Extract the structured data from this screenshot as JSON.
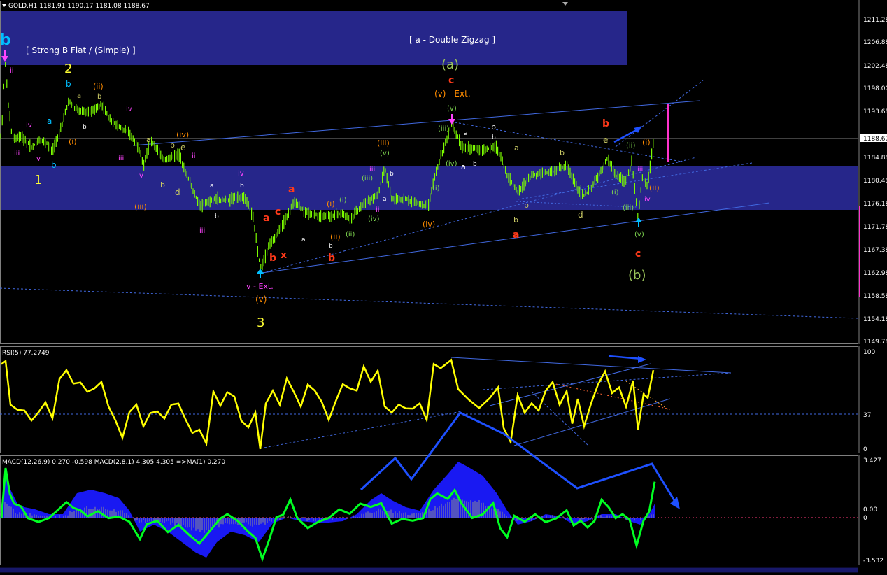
{
  "window": {
    "symbol_header": "GOLD,H1  1181.91 1190.17 1181.08 1188.67",
    "current_price_label": "1188.67"
  },
  "labels": {
    "box_left": "[ Strong B Flat / (Simple) ]",
    "box_right": "[ a - Double Zigzag ]",
    "v_ext": "v - Ext.",
    "vv_ext": "(v) - Ext."
  },
  "colors": {
    "background": "#000000",
    "band_fill": "#26268a",
    "candle": "#7cfc00",
    "grid_panel_border": "#7f7f7f",
    "trendline": "#4169e1",
    "rsi_line": "#ffff00",
    "macd_line": "#00ff00",
    "macd_hist": "#0000ff",
    "label_yellow": "#ffff66",
    "label_orange": "#ff8c00",
    "label_red": "#ff3a1a",
    "label_magenta": "#ff44ff",
    "label_cyan": "#00bfff",
    "label_green": "#7fd850",
    "label_khaki": "#b5b46a",
    "label_white": "#ffffff"
  },
  "chart_data": [
    {
      "type": "candlestick",
      "panel": "price",
      "yaxis_ticks": [
        "1211.28",
        "1206.88",
        "1202.48",
        "1198.00",
        "1193.68",
        "1188.67",
        "1184.88",
        "1180.48",
        "1176.18",
        "1171.78",
        "1167.38",
        "1162.98",
        "1158.58",
        "1154.18",
        "1149.78"
      ],
      "ylim": [
        1149.78,
        1211.28
      ],
      "wave_labels": [
        {
          "text": "b",
          "color": "#00bfff",
          "bold": true,
          "size": 22
        },
        {
          "text": "[ Strong B Flat / (Simple) ]",
          "color": "#ffffff",
          "size": 12
        },
        {
          "text": "2",
          "color": "#ffff33",
          "size": 18
        },
        {
          "text": "1",
          "color": "#ffff33",
          "size": 18
        },
        {
          "text": "3",
          "color": "#ffff33",
          "size": 18
        },
        {
          "text": "(a)",
          "color": "#7fd850",
          "size": 18
        },
        {
          "text": "(b)",
          "color": "#7fd850",
          "size": 18
        },
        {
          "text": "[ a - Double Zigzag ]",
          "color": "#ffffff",
          "size": 12
        },
        {
          "text": "c",
          "color": "#ff3a1a",
          "bold": true,
          "size": 14
        },
        {
          "text": "(v) - Ext.",
          "color": "#ff8c00",
          "size": 12
        },
        {
          "text": "(v)",
          "color": "#ff8c00",
          "size": 12
        },
        {
          "text": "v - Ext.",
          "color": "#ff44ff",
          "size": 11
        },
        {
          "text": "(ii)",
          "color": "#ff8c00",
          "size": 11
        },
        {
          "text": "(iv)",
          "color": "#ff8c00",
          "size": 11
        },
        {
          "text": "(iii)",
          "color": "#ff8c00",
          "size": 11
        },
        {
          "text": "(i)",
          "color": "#ff8c00",
          "size": 11
        },
        {
          "text": "a",
          "color": "#ff3a1a",
          "bold": true,
          "size": 14
        },
        {
          "text": "b",
          "color": "#ff3a1a",
          "bold": true,
          "size": 14
        },
        {
          "text": "x",
          "color": "#ff3a1a",
          "bold": true,
          "size": 14
        },
        {
          "text": "d",
          "color": "#c8c864",
          "size": 12
        },
        {
          "text": "e",
          "color": "#c8c864",
          "size": 12
        },
        {
          "text": "i",
          "color": "#ff44ff",
          "size": 10
        },
        {
          "text": "ii",
          "color": "#ff44ff",
          "size": 10
        },
        {
          "text": "iii",
          "color": "#ff44ff",
          "size": 10
        },
        {
          "text": "iv",
          "color": "#ff44ff",
          "size": 10
        },
        {
          "text": "v",
          "color": "#ff44ff",
          "size": 10
        },
        {
          "text": "(i)",
          "color": "#7fd850",
          "size": 10
        },
        {
          "text": "(ii)",
          "color": "#7fd850",
          "size": 10
        },
        {
          "text": "(iii)",
          "color": "#7fd850",
          "size": 10
        },
        {
          "text": "(iv)",
          "color": "#7fd850",
          "size": 10
        },
        {
          "text": "(v)",
          "color": "#7fd850",
          "size": 10
        },
        {
          "text": "a",
          "color": "#ffffff",
          "size": 10
        },
        {
          "text": "b",
          "color": "#ffffff",
          "size": 10
        },
        {
          "text": "c",
          "color": "#ffffff",
          "size": 10
        },
        {
          "text": "b",
          "color": "#ff8c00",
          "size": 12
        },
        {
          "text": "c",
          "color": "#ff8c00",
          "size": 12
        },
        {
          "text": "(ii)",
          "color": "#ff8c00",
          "size": 11
        },
        {
          "text": "(i)",
          "color": "#ff8c00",
          "size": 11
        },
        {
          "text": "a",
          "color": "#00bfff",
          "size": 11
        },
        {
          "text": "b",
          "color": "#00bfff",
          "size": 11
        },
        {
          "text": "c",
          "color": "#00bfff",
          "size": 11
        }
      ]
    },
    {
      "type": "line",
      "panel": "rsi",
      "header": "RSI(5) 77.2749",
      "yaxis_ticks": [
        "100",
        "37",
        "0"
      ],
      "ylim": [
        0,
        100
      ],
      "reference_level": 37
    },
    {
      "type": "bar",
      "panel": "macd",
      "header": "MACD(12,26,9) 0.270 -0.598  MACD(2,8,1) 4.305 4.305  =>MA(1) 0.270",
      "yaxis_ticks": [
        "3.427",
        "0.00",
        "0",
        "-3.532"
      ],
      "ylim": [
        -3.532,
        3.427
      ]
    }
  ]
}
